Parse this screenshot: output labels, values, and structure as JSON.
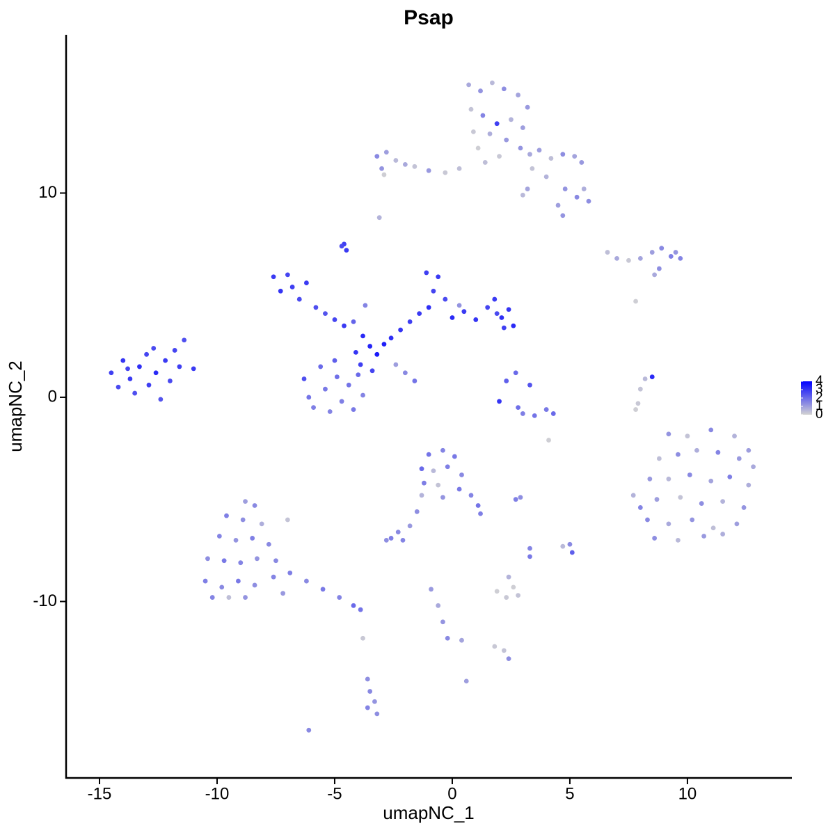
{
  "chart_data": {
    "type": "scatter",
    "title": "Psap",
    "x_label": "umapNC_1",
    "y_label": "umapNC_2",
    "xlim": [
      -16.42,
      14.44
    ],
    "ylim": [
      -18.64,
      17.75
    ],
    "xticks": [
      -15,
      -10,
      -5,
      0,
      5,
      10
    ],
    "yticks": [
      -10,
      0,
      10
    ],
    "color_low": "#d3d3d3",
    "color_high": "#0000ff",
    "color_lim": [
      0,
      4
    ],
    "color_ticks": [
      0,
      1,
      2,
      3,
      4
    ],
    "points": [
      [
        -14.5,
        1.2,
        2.8
      ],
      [
        -14.2,
        0.5,
        2.6
      ],
      [
        -14.0,
        1.8,
        3.0
      ],
      [
        -13.7,
        0.9,
        2.9
      ],
      [
        -13.5,
        0.2,
        2.5
      ],
      [
        -13.3,
        1.5,
        3.1
      ],
      [
        -13.0,
        2.1,
        2.7
      ],
      [
        -12.9,
        0.6,
        2.8
      ],
      [
        -12.6,
        1.2,
        3.2
      ],
      [
        -12.4,
        -0.1,
        2.4
      ],
      [
        -12.2,
        1.8,
        2.9
      ],
      [
        -12.0,
        0.8,
        2.6
      ],
      [
        -11.8,
        2.3,
        2.7
      ],
      [
        -11.6,
        1.5,
        2.8
      ],
      [
        -11.4,
        2.8,
        2.5
      ],
      [
        -11.0,
        1.4,
        2.9
      ],
      [
        -13.8,
        1.4,
        2.7
      ],
      [
        -12.7,
        2.4,
        2.6
      ],
      [
        -7.6,
        5.9,
        2.9
      ],
      [
        -7.3,
        5.2,
        3.0
      ],
      [
        -7.0,
        6.0,
        2.7
      ],
      [
        -6.8,
        5.4,
        2.8
      ],
      [
        -6.5,
        4.8,
        2.6
      ],
      [
        -6.2,
        5.6,
        2.9
      ],
      [
        -5.8,
        4.4,
        2.5
      ],
      [
        -5.4,
        4.1,
        2.4
      ],
      [
        -5.0,
        3.8,
        2.7
      ],
      [
        -4.6,
        3.5,
        2.9
      ],
      [
        -4.2,
        3.7,
        2.1
      ],
      [
        -3.8,
        3.0,
        3.2
      ],
      [
        -3.5,
        2.5,
        3.3
      ],
      [
        -3.2,
        2.1,
        3.5
      ],
      [
        -2.9,
        2.6,
        3.4
      ],
      [
        -2.6,
        2.9,
        3.1
      ],
      [
        -4.1,
        2.2,
        3.0
      ],
      [
        -3.9,
        1.6,
        2.8
      ],
      [
        -3.4,
        1.3,
        2.7
      ],
      [
        -3.7,
        4.5,
        1.5
      ],
      [
        -4.6,
        7.5,
        2.8
      ],
      [
        -4.5,
        7.2,
        2.9
      ],
      [
        -4.7,
        7.4,
        2.6
      ],
      [
        -2.2,
        3.3,
        3.0
      ],
      [
        -1.8,
        3.7,
        2.8
      ],
      [
        -1.4,
        4.1,
        2.9
      ],
      [
        -1.0,
        4.4,
        3.1
      ],
      [
        -0.8,
        5.2,
        2.7
      ],
      [
        -1.1,
        6.1,
        2.8
      ],
      [
        -0.6,
        5.9,
        2.9
      ],
      [
        -0.3,
        4.8,
        2.6
      ],
      [
        0.0,
        3.9,
        3.2
      ],
      [
        0.5,
        4.2,
        2.9
      ],
      [
        1.0,
        3.8,
        3.0
      ],
      [
        1.5,
        4.4,
        2.7
      ],
      [
        1.8,
        4.8,
        2.9
      ],
      [
        2.1,
        3.9,
        3.1
      ],
      [
        2.4,
        4.3,
        3.0
      ],
      [
        2.6,
        3.5,
        3.2
      ],
      [
        2.2,
        3.4,
        2.8
      ],
      [
        1.9,
        4.1,
        2.6
      ],
      [
        0.3,
        4.5,
        1.2
      ],
      [
        -6.3,
        0.9,
        2.5
      ],
      [
        -6.1,
        0.0,
        1.8
      ],
      [
        -5.9,
        -0.5,
        1.6
      ],
      [
        -5.6,
        1.5,
        2.0
      ],
      [
        -5.4,
        0.4,
        1.7
      ],
      [
        -5.2,
        -0.7,
        1.5
      ],
      [
        -4.9,
        1.0,
        1.9
      ],
      [
        -4.7,
        -0.2,
        1.6
      ],
      [
        -4.4,
        0.6,
        1.8
      ],
      [
        -4.2,
        -0.6,
        1.7
      ],
      [
        -4.0,
        1.1,
        2.0
      ],
      [
        -3.8,
        0.1,
        1.5
      ],
      [
        -5.0,
        1.8,
        2.2
      ],
      [
        -2.4,
        1.6,
        1.0
      ],
      [
        -2.0,
        1.2,
        1.4
      ],
      [
        -1.6,
        0.8,
        1.8
      ],
      [
        2.3,
        0.8,
        2.2
      ],
      [
        2.7,
        1.2,
        2.0
      ],
      [
        3.3,
        0.6,
        2.4
      ],
      [
        2.8,
        -0.5,
        1.9
      ],
      [
        3.5,
        -0.9,
        1.8
      ],
      [
        4.0,
        -0.6,
        1.7
      ],
      [
        4.3,
        -0.8,
        2.0
      ],
      [
        2.0,
        -0.2,
        3.0
      ],
      [
        3.0,
        -0.8,
        1.6
      ],
      [
        8.0,
        0.4,
        0.3
      ],
      [
        8.2,
        0.9,
        0.5
      ],
      [
        8.5,
        1.0,
        3.2
      ],
      [
        7.9,
        -0.3,
        0.2
      ],
      [
        7.8,
        -0.6,
        0.1
      ],
      [
        0.7,
        15.3,
        0.8
      ],
      [
        1.2,
        15.0,
        1.2
      ],
      [
        1.7,
        15.4,
        0.5
      ],
      [
        2.2,
        15.1,
        1.3
      ],
      [
        2.8,
        14.8,
        0.9
      ],
      [
        3.2,
        14.2,
        1.1
      ],
      [
        0.8,
        14.1,
        0.3
      ],
      [
        1.3,
        13.8,
        1.5
      ],
      [
        1.9,
        13.4,
        2.8
      ],
      [
        2.5,
        13.6,
        0.6
      ],
      [
        3.0,
        13.2,
        1.0
      ],
      [
        0.9,
        13.0,
        0.2
      ],
      [
        1.6,
        12.9,
        0.7
      ],
      [
        2.3,
        12.6,
        1.1
      ],
      [
        1.1,
        12.2,
        0.1
      ],
      [
        1.4,
        11.5,
        0.4
      ],
      [
        2.0,
        11.8,
        0.2
      ],
      [
        2.9,
        12.2,
        1.2
      ],
      [
        3.3,
        11.9,
        0.8
      ],
      [
        3.7,
        12.1,
        1.0
      ],
      [
        4.2,
        11.7,
        0.4
      ],
      [
        4.7,
        11.9,
        1.3
      ],
      [
        5.2,
        11.8,
        0.9
      ],
      [
        5.5,
        11.5,
        1.1
      ],
      [
        3.4,
        11.2,
        0.3
      ],
      [
        4.0,
        10.8,
        0.6
      ],
      [
        4.8,
        10.2,
        1.2
      ],
      [
        5.3,
        9.8,
        1.4
      ],
      [
        5.8,
        9.6,
        1.3
      ],
      [
        5.6,
        10.2,
        0.7
      ],
      [
        4.5,
        9.4,
        1.0
      ],
      [
        4.7,
        8.9,
        1.2
      ],
      [
        3.2,
        10.2,
        0.9
      ],
      [
        3.0,
        9.9,
        0.5
      ],
      [
        -3.2,
        11.8,
        1.4
      ],
      [
        -2.8,
        12.0,
        1.0
      ],
      [
        -2.4,
        11.6,
        0.5
      ],
      [
        -3.0,
        11.2,
        1.2
      ],
      [
        -2.0,
        11.4,
        0.8
      ],
      [
        -1.6,
        11.3,
        0.3
      ],
      [
        -1.0,
        11.1,
        1.1
      ],
      [
        -0.3,
        11.0,
        0.2
      ],
      [
        0.3,
        11.2,
        0.4
      ],
      [
        -2.9,
        10.9,
        0.1
      ],
      [
        -3.1,
        8.8,
        0.6
      ],
      [
        6.6,
        7.1,
        0.4
      ],
      [
        7.0,
        6.8,
        0.8
      ],
      [
        7.5,
        6.7,
        0.2
      ],
      [
        8.0,
        6.8,
        0.9
      ],
      [
        8.5,
        7.1,
        1.0
      ],
      [
        8.9,
        7.3,
        1.4
      ],
      [
        9.3,
        6.9,
        1.6
      ],
      [
        9.7,
        6.8,
        1.5
      ],
      [
        9.5,
        7.1,
        1.2
      ],
      [
        8.8,
        6.3,
        1.3
      ],
      [
        8.6,
        6.0,
        0.8
      ],
      [
        7.8,
        4.7,
        0.1
      ],
      [
        9.2,
        -1.8,
        1.2
      ],
      [
        10.0,
        -1.9,
        0.3
      ],
      [
        11.0,
        -1.6,
        1.4
      ],
      [
        12.0,
        -1.9,
        0.6
      ],
      [
        12.6,
        -2.6,
        1.0
      ],
      [
        8.8,
        -3.0,
        0.4
      ],
      [
        9.6,
        -2.8,
        1.3
      ],
      [
        10.4,
        -2.6,
        0.7
      ],
      [
        11.3,
        -2.7,
        1.5
      ],
      [
        12.2,
        -3.0,
        1.1
      ],
      [
        12.8,
        -3.4,
        0.8
      ],
      [
        8.4,
        -4.0,
        1.1
      ],
      [
        9.2,
        -4.0,
        0.5
      ],
      [
        10.1,
        -3.8,
        1.4
      ],
      [
        11.0,
        -4.1,
        0.9
      ],
      [
        11.8,
        -3.9,
        1.6
      ],
      [
        12.6,
        -4.3,
        0.7
      ],
      [
        7.7,
        -4.8,
        0.6
      ],
      [
        8.7,
        -5.0,
        1.0
      ],
      [
        9.7,
        -4.9,
        0.3
      ],
      [
        10.6,
        -5.2,
        1.3
      ],
      [
        11.5,
        -5.1,
        0.6
      ],
      [
        12.4,
        -5.4,
        1.2
      ],
      [
        8.3,
        -6.0,
        1.4
      ],
      [
        9.2,
        -6.2,
        0.8
      ],
      [
        10.2,
        -6.0,
        1.2
      ],
      [
        11.1,
        -6.4,
        0.4
      ],
      [
        12.1,
        -6.2,
        1.0
      ],
      [
        8.6,
        -6.9,
        1.3
      ],
      [
        9.6,
        -7.0,
        0.5
      ],
      [
        10.7,
        -6.8,
        1.1
      ],
      [
        11.5,
        -6.7,
        0.7
      ],
      [
        8.0,
        -5.4,
        1.5
      ],
      [
        -8.8,
        -5.1,
        1.0
      ],
      [
        -8.4,
        -5.3,
        1.4
      ],
      [
        -9.6,
        -5.8,
        1.6
      ],
      [
        -8.9,
        -6.0,
        1.3
      ],
      [
        -8.1,
        -6.2,
        0.7
      ],
      [
        -9.9,
        -6.8,
        1.5
      ],
      [
        -9.2,
        -7.0,
        1.2
      ],
      [
        -8.5,
        -6.9,
        1.6
      ],
      [
        -7.8,
        -7.2,
        1.4
      ],
      [
        -10.4,
        -7.9,
        1.3
      ],
      [
        -9.7,
        -8.0,
        1.7
      ],
      [
        -9.0,
        -8.1,
        1.5
      ],
      [
        -8.3,
        -7.9,
        1.2
      ],
      [
        -7.5,
        -8.0,
        1.4
      ],
      [
        -10.5,
        -9.0,
        1.6
      ],
      [
        -9.8,
        -9.3,
        1.4
      ],
      [
        -9.1,
        -9.0,
        1.7
      ],
      [
        -8.4,
        -9.2,
        1.3
      ],
      [
        -7.6,
        -8.8,
        1.5
      ],
      [
        -6.9,
        -8.6,
        1.6
      ],
      [
        -6.2,
        -9.0,
        1.4
      ],
      [
        -5.5,
        -9.4,
        1.7
      ],
      [
        -4.8,
        -9.8,
        1.5
      ],
      [
        -4.2,
        -10.2,
        2.0
      ],
      [
        -3.9,
        -10.4,
        1.8
      ],
      [
        -8.8,
        -9.8,
        1.2
      ],
      [
        -7.2,
        -9.6,
        1.1
      ],
      [
        -10.2,
        -9.8,
        1.5
      ],
      [
        -7.0,
        -6.0,
        0.3
      ],
      [
        -9.5,
        -9.8,
        0.4
      ],
      [
        -3.8,
        -11.8,
        0.2
      ],
      [
        -1.0,
        -2.8,
        1.8
      ],
      [
        -0.4,
        -2.6,
        1.5
      ],
      [
        0.1,
        -2.9,
        1.7
      ],
      [
        -1.3,
        -3.5,
        2.0
      ],
      [
        -0.8,
        -3.6,
        0.5
      ],
      [
        -0.2,
        -3.4,
        1.6
      ],
      [
        0.4,
        -3.8,
        1.4
      ],
      [
        -1.2,
        -4.2,
        1.6
      ],
      [
        -0.6,
        -4.3,
        0.3
      ],
      [
        0.3,
        -4.5,
        1.7
      ],
      [
        0.8,
        -4.8,
        1.5
      ],
      [
        1.1,
        -5.3,
        1.8
      ],
      [
        1.2,
        -5.7,
        1.6
      ],
      [
        -0.4,
        -4.9,
        1.2
      ],
      [
        -1.3,
        -4.8,
        0.6
      ],
      [
        -1.5,
        -5.6,
        1.3
      ],
      [
        -1.8,
        -6.3,
        1.1
      ],
      [
        -2.3,
        -6.6,
        1.4
      ],
      [
        -2.6,
        -6.9,
        1.6
      ],
      [
        -2.1,
        -7.0,
        1.5
      ],
      [
        -2.8,
        -7.0,
        1.3
      ],
      [
        -0.9,
        -9.4,
        1.1
      ],
      [
        -0.6,
        -10.2,
        0.8
      ],
      [
        -0.4,
        -11.0,
        1.2
      ],
      [
        -0.2,
        -11.8,
        1.4
      ],
      [
        0.4,
        -11.9,
        0.9
      ],
      [
        0.6,
        -13.9,
        1.0
      ],
      [
        1.8,
        -12.2,
        0.2
      ],
      [
        2.2,
        -12.4,
        0.3
      ],
      [
        2.4,
        -12.8,
        1.3
      ],
      [
        1.9,
        -9.5,
        0.1
      ],
      [
        2.3,
        -9.8,
        0.2
      ],
      [
        2.6,
        -9.3,
        0.1
      ],
      [
        2.8,
        -9.7,
        0.3
      ],
      [
        2.4,
        -8.8,
        0.6
      ],
      [
        3.3,
        -7.8,
        1.7
      ],
      [
        3.3,
        -7.4,
        1.5
      ],
      [
        2.7,
        -5.0,
        1.6
      ],
      [
        2.9,
        -4.9,
        1.3
      ],
      [
        5.0,
        -7.2,
        1.4
      ],
      [
        5.1,
        -7.6,
        2.2
      ],
      [
        4.7,
        -7.3,
        0.5
      ],
      [
        4.1,
        -2.1,
        0.1
      ],
      [
        -3.6,
        -13.8,
        1.3
      ],
      [
        -3.5,
        -14.4,
        1.4
      ],
      [
        -3.3,
        -14.9,
        1.2
      ],
      [
        -3.6,
        -15.2,
        1.5
      ],
      [
        -3.2,
        -15.5,
        1.3
      ],
      [
        -6.1,
        -16.3,
        1.4
      ]
    ]
  }
}
